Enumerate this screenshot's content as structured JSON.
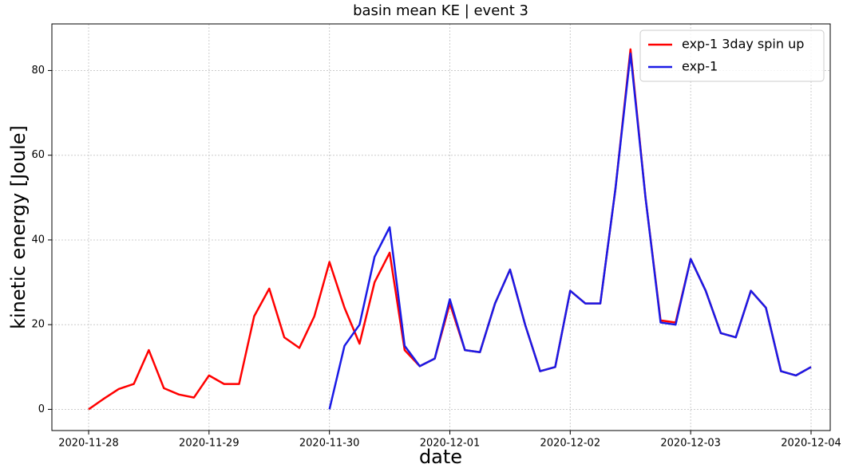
{
  "chart_data": {
    "type": "line",
    "title": "basin mean KE | event 3",
    "x_label": "date",
    "y_label": "kinetic energy [Joule]",
    "categories": [
      "2020-11-28",
      null,
      null,
      null,
      null,
      null,
      null,
      null,
      "2020-11-29",
      null,
      null,
      null,
      null,
      null,
      null,
      null,
      "2020-11-30",
      null,
      null,
      null,
      null,
      null,
      null,
      null,
      "2020-12-01",
      null,
      null,
      null,
      null,
      null,
      null,
      null,
      "2020-12-02",
      null,
      null,
      null,
      null,
      null,
      null,
      null,
      "2020-12-03",
      null,
      null,
      null,
      null,
      null,
      null,
      null,
      "2020-12-04"
    ],
    "series": [
      {
        "name": "exp-1 3day spin up",
        "color": "#ff0000",
        "values": [
          0,
          2.5,
          4.8,
          6,
          14,
          5,
          3.5,
          2.8,
          8,
          6,
          6,
          22,
          28.5,
          17,
          14.5,
          22,
          34.8,
          24,
          15.5,
          30,
          37,
          14,
          10.2,
          12,
          25,
          14,
          13.5,
          25,
          33,
          20,
          9,
          10,
          28,
          25,
          25,
          52,
          85,
          50,
          21,
          20.5,
          35.5,
          28,
          18,
          17,
          28,
          24,
          9,
          8,
          10
        ]
      },
      {
        "name": "exp-1",
        "color": "#1a1ae6",
        "values": [
          null,
          null,
          null,
          null,
          null,
          null,
          null,
          null,
          null,
          null,
          null,
          null,
          null,
          null,
          null,
          null,
          0,
          15,
          20,
          36,
          43,
          15,
          10.2,
          12,
          26,
          14,
          13.5,
          25,
          33,
          20,
          9,
          10,
          28,
          25,
          25,
          52,
          84,
          50,
          20.5,
          20,
          35.5,
          28,
          18,
          17,
          28,
          24,
          9,
          8,
          10
        ]
      }
    ],
    "ylim": [
      -5,
      91
    ],
    "yticks": [
      0,
      20,
      40,
      60,
      80
    ],
    "grid": true,
    "legend": "upper right"
  }
}
